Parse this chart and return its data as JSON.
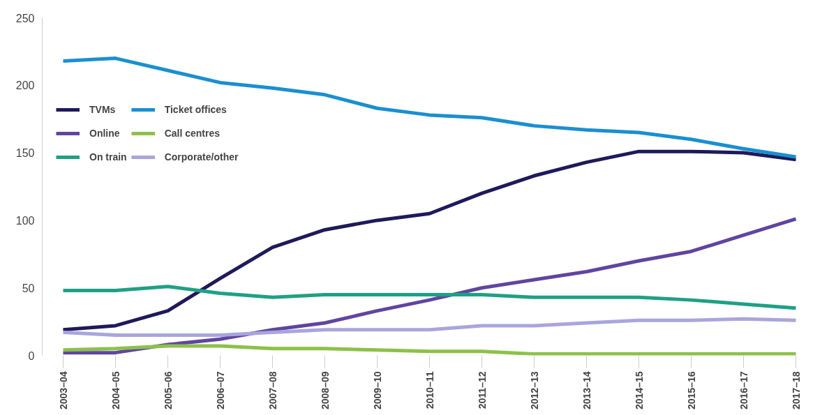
{
  "chart_data": {
    "type": "line",
    "categories": [
      "2003–04",
      "2004–05",
      "2005–06",
      "2006–07",
      "2007–08",
      "2008–09",
      "2009–10",
      "2010–11",
      "2011–12",
      "2012–13",
      "2013–14",
      "2014–15",
      "2015–16",
      "2016–17",
      "2017–18"
    ],
    "series": [
      {
        "name": "TVMs",
        "color": "#1e1a5a",
        "values": [
          19,
          22,
          33,
          57,
          80,
          93,
          100,
          105,
          120,
          133,
          143,
          151,
          151,
          150,
          145
        ]
      },
      {
        "name": "Online",
        "color": "#5f45a0",
        "values": [
          2,
          2,
          8,
          12,
          19,
          24,
          33,
          41,
          50,
          56,
          62,
          70,
          77,
          89,
          101
        ]
      },
      {
        "name": "On train",
        "color": "#1fa084",
        "values": [
          48,
          48,
          51,
          46,
          43,
          45,
          45,
          45,
          45,
          43,
          43,
          43,
          41,
          38,
          35
        ]
      },
      {
        "name": "Ticket offices",
        "color": "#1a8fd0",
        "values": [
          218,
          220,
          211,
          202,
          198,
          193,
          183,
          178,
          176,
          170,
          167,
          165,
          160,
          153,
          147
        ]
      },
      {
        "name": "Call centres",
        "color": "#8dc04a",
        "values": [
          4,
          5,
          7,
          7,
          5,
          5,
          4,
          3,
          3,
          1,
          1,
          1,
          1,
          1,
          1
        ]
      },
      {
        "name": "Corporate/other",
        "color": "#a9a5dc",
        "values": [
          17,
          15,
          15,
          15,
          17,
          19,
          19,
          19,
          22,
          22,
          24,
          26,
          26,
          27,
          26
        ]
      }
    ],
    "ylim": [
      0,
      250
    ],
    "yticks": [
      0,
      50,
      100,
      150,
      200,
      250
    ],
    "grid": false,
    "legend": "left",
    "marker": "none",
    "line_style": "solid"
  }
}
